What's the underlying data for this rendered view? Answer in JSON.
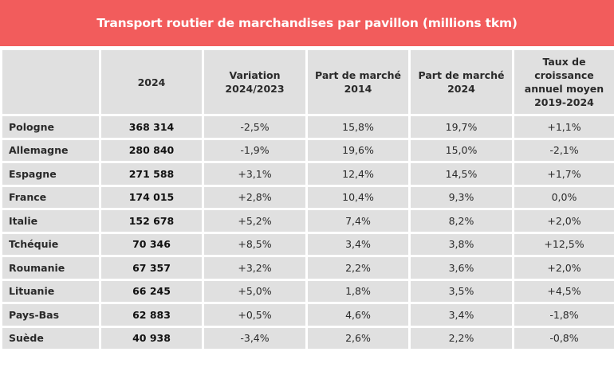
{
  "title": "Transport routier de marchandises par pavillon (millions tkm)",
  "colors": {
    "title_bg": "#f25c5c",
    "cell_bg": "#e0e0e0"
  },
  "headers": [
    "",
    "2024",
    "Variation\n2024/2023",
    "Part de marché\n2014",
    "Part de marché\n2024",
    "Taux de\ncroissance\nannuel moyen\n2019-2024"
  ],
  "rows": [
    [
      "Pologne",
      "368 314",
      "-2,5%",
      "15,8%",
      "19,7%",
      "+1,1%"
    ],
    [
      "Allemagne",
      "280 840",
      "-1,9%",
      "19,6%",
      "15,0%",
      "-2,1%"
    ],
    [
      "Espagne",
      "271 588",
      "+3,1%",
      "12,4%",
      "14,5%",
      "+1,7%"
    ],
    [
      "France",
      "174 015",
      "+2,8%",
      "10,4%",
      "9,3%",
      "0,0%"
    ],
    [
      "Italie",
      "152 678",
      "+5,2%",
      "7,4%",
      "8,2%",
      "+2,0%"
    ],
    [
      "Tchéquie",
      "70 346",
      "+8,5%",
      "3,4%",
      "3,8%",
      "+12,5%"
    ],
    [
      "Roumanie",
      "67 357",
      "+3,2%",
      "2,2%",
      "3,6%",
      "+2,0%"
    ],
    [
      "Lituanie",
      "66 245",
      "+5,0%",
      "1,8%",
      "3,5%",
      "+4,5%"
    ],
    [
      "Pays-Bas",
      "62 883",
      "+0,5%",
      "4,6%",
      "3,4%",
      "-1,8%"
    ],
    [
      "Suède",
      "40 938",
      "-3,4%",
      "2,6%",
      "2,2%",
      "-0,8%"
    ]
  ]
}
